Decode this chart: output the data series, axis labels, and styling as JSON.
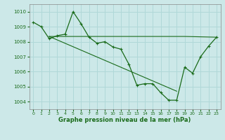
{
  "title": "Graphe pression niveau de la mer (hPa)",
  "bg_color": "#cce8e8",
  "grid_color": "#b0d8d8",
  "line_color": "#1a6b1a",
  "ylim": [
    1003.5,
    1010.5
  ],
  "xlim": [
    -0.5,
    23.5
  ],
  "yticks": [
    1004,
    1005,
    1006,
    1007,
    1008,
    1009,
    1010
  ],
  "xticks": [
    0,
    1,
    2,
    3,
    4,
    5,
    6,
    7,
    8,
    9,
    10,
    11,
    12,
    13,
    14,
    15,
    16,
    17,
    18,
    19,
    20,
    21,
    22,
    23
  ],
  "main_line": {
    "x": [
      0,
      1,
      2,
      3,
      4,
      5,
      6,
      7,
      8,
      9,
      10,
      11,
      12,
      13,
      14,
      15,
      16,
      17,
      18,
      19,
      20,
      21,
      22,
      23
    ],
    "y": [
      1009.3,
      1009.0,
      1008.2,
      1008.4,
      1008.5,
      1010.0,
      1009.2,
      1008.3,
      1007.9,
      1008.0,
      1007.65,
      1007.5,
      1006.5,
      1005.1,
      1005.2,
      1005.2,
      1004.6,
      1004.1,
      1004.1,
      1006.3,
      1005.9,
      1007.0,
      1007.7,
      1008.3
    ]
  },
  "flat_line": {
    "x": [
      2,
      19,
      23
    ],
    "y": [
      1008.35,
      1008.35,
      1008.3
    ]
  },
  "diag_line": {
    "x": [
      2,
      18
    ],
    "y": [
      1008.35,
      1004.7
    ]
  }
}
